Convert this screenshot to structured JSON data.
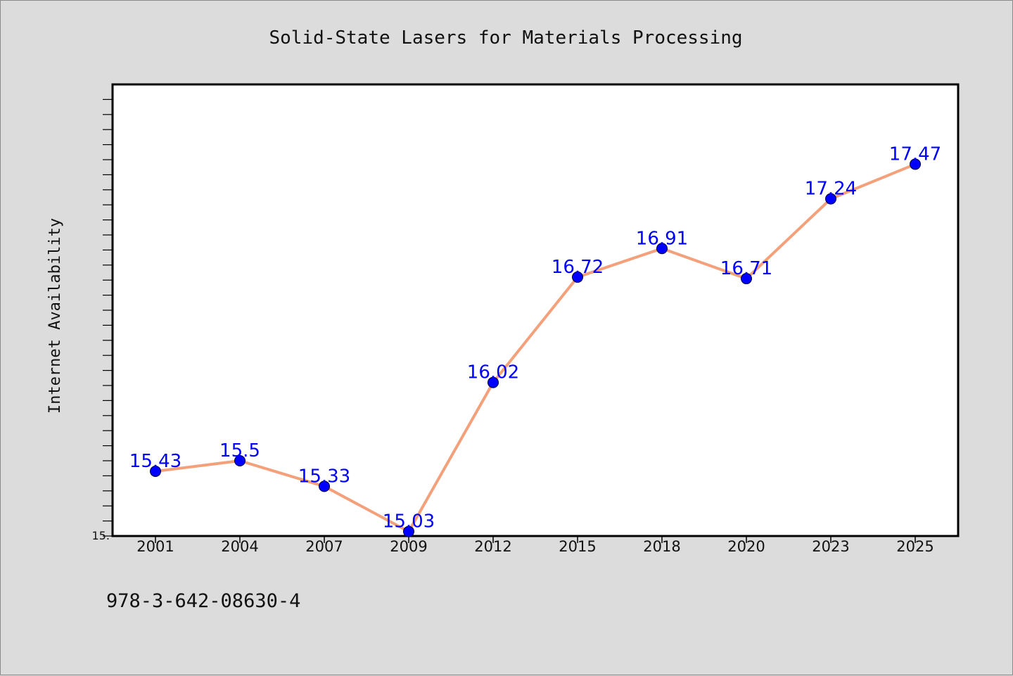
{
  "chart_data": {
    "type": "line",
    "title": "Solid-State Lasers for Materials Processing",
    "xlabel": "",
    "ylabel": "Internet Availability",
    "categories": [
      "2001",
      "2004",
      "2007",
      "2009",
      "2012",
      "2015",
      "2018",
      "2020",
      "2023",
      "2025"
    ],
    "series": [
      {
        "values": [
          15.43,
          15.5,
          15.33,
          15.03,
          16.02,
          16.72,
          16.91,
          16.71,
          17.24,
          17.47
        ],
        "labels": [
          "15.43",
          "15.5",
          "15.33",
          "15.03",
          "16.02",
          "16.72",
          "16.91",
          "16.71",
          "17.24",
          "17.47"
        ],
        "line_color": "#f4a07a",
        "marker_color": "#0000ff"
      }
    ],
    "ylim": [
      15.0,
      18.0
    ],
    "ytick_labels": [
      {
        "value": 15.0,
        "label": "15."
      }
    ],
    "minor_ytick_step": 0.1,
    "grid": false,
    "legend": "none"
  },
  "footnote": "978-3-642-08630-4"
}
